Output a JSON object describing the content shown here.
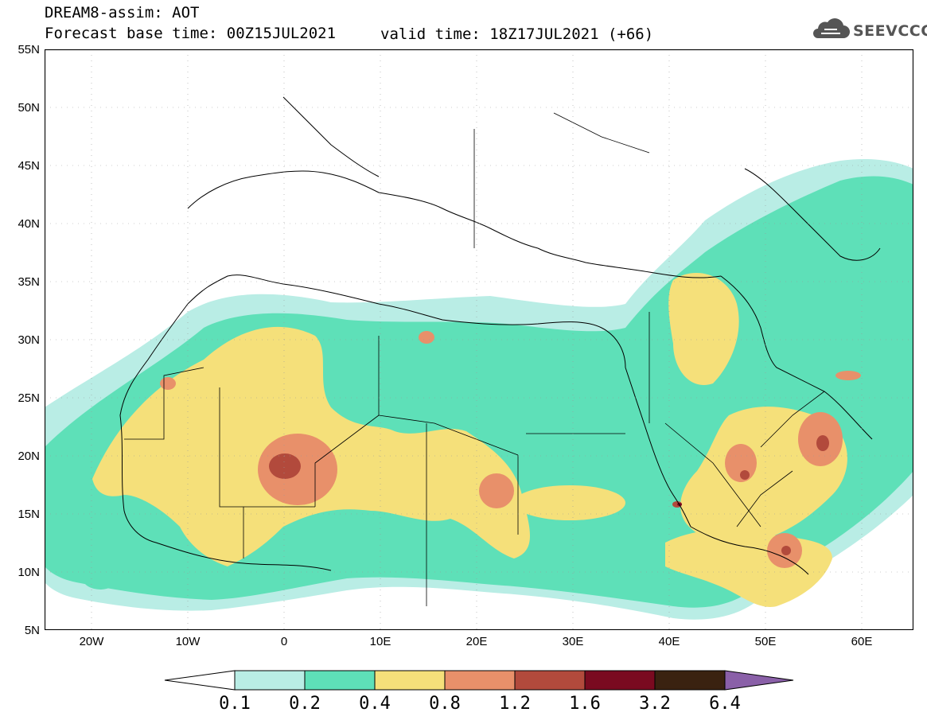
{
  "header": {
    "title": "DREAM8-assim: AOT",
    "base_time": "Forecast base time: 00Z15JUL2021",
    "valid_time": "valid time: 18Z17JUL2021 (+66)",
    "logo_text": "SEEVCCC"
  },
  "map": {
    "product": "AOT",
    "lat_labels": [
      "55N",
      "50N",
      "45N",
      "40N",
      "35N",
      "30N",
      "25N",
      "20N",
      "15N",
      "10N",
      "5N"
    ],
    "lon_labels": [
      "20W",
      "10W",
      "0",
      "10E",
      "20E",
      "30E",
      "40E",
      "50E",
      "60E"
    ]
  },
  "legend": {
    "levels": [
      "0.1",
      "0.2",
      "0.4",
      "0.8",
      "1.2",
      "1.6",
      "3.2",
      "6.4"
    ],
    "colors": [
      "#b9ede5",
      "#5ee0b8",
      "#f5e07a",
      "#e8906a",
      "#b24a3c",
      "#7a0a20",
      "#3a2210",
      "#8a60a8"
    ]
  },
  "colors": {
    "c01": "#b9ede5",
    "c02": "#5ee0b8",
    "c04": "#f5e07a",
    "c08": "#e8906a",
    "c12": "#b24a3c",
    "c16": "#7a0a20"
  }
}
